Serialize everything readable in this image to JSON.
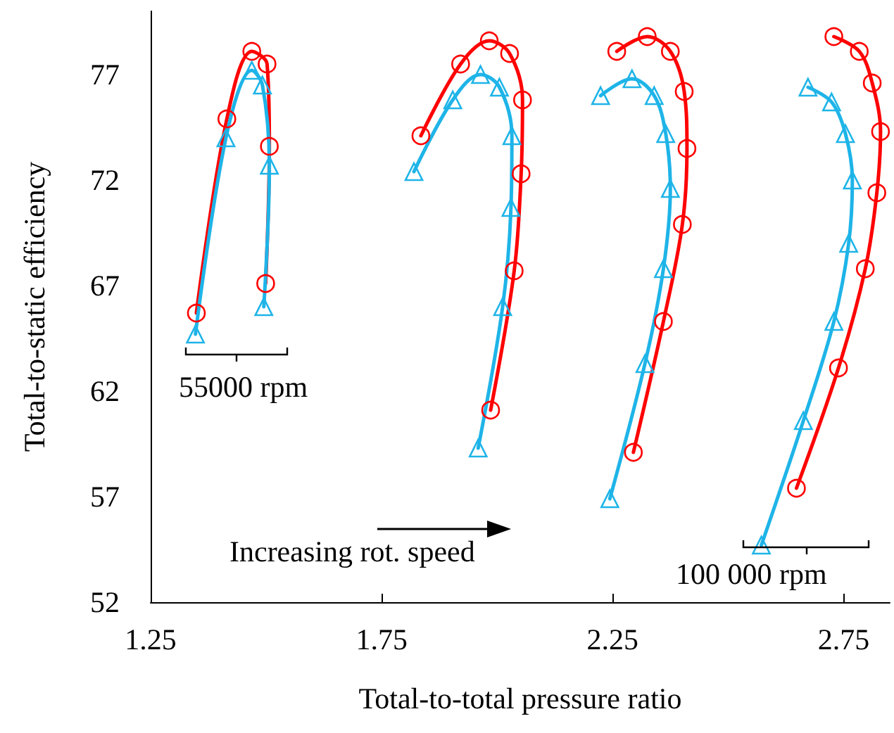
{
  "chart_data": {
    "type": "line",
    "xlabel": "Total-to-total pressure ratio",
    "ylabel": "Total-to-static efficiency",
    "xlim": [
      1.25,
      2.85
    ],
    "ylim": [
      52,
      80
    ],
    "xticks": [
      1.25,
      1.75,
      2.25,
      2.75
    ],
    "yticks": [
      52,
      57,
      62,
      67,
      72,
      77
    ],
    "grid": false,
    "annotations": [
      "55000 rpm",
      "Increasing rot. speed",
      "100 000 rpm"
    ],
    "series": [
      {
        "color": "#ff0000",
        "marker": "circle",
        "x": [
          1.349,
          1.415,
          1.469,
          1.502,
          1.507,
          1.499
        ],
        "values": [
          65.7,
          74.9,
          78.1,
          77.5,
          73.6,
          67.1
        ]
      },
      {
        "color": "#1eb4e8",
        "marker": "triangle",
        "x": [
          1.347,
          1.413,
          1.469,
          1.492,
          1.507,
          1.495
        ],
        "values": [
          64.7,
          74.0,
          77.2,
          76.5,
          72.7,
          66.0
        ]
      },
      {
        "color": "#ff0000",
        "marker": "circle",
        "x": [
          1.835,
          1.921,
          1.983,
          2.027,
          2.055,
          2.052,
          2.037,
          1.986
        ],
        "values": [
          74.1,
          77.5,
          78.6,
          78.0,
          75.8,
          72.3,
          67.7,
          61.1
        ]
      },
      {
        "color": "#1eb4e8",
        "marker": "triangle",
        "x": [
          1.82,
          1.904,
          1.964,
          2.005,
          2.032,
          2.03,
          2.012,
          1.959
        ],
        "values": [
          72.4,
          75.8,
          77.0,
          76.4,
          74.1,
          70.7,
          66.0,
          59.3
        ]
      },
      {
        "color": "#ff0000",
        "marker": "circle",
        "x": [
          2.259,
          2.325,
          2.375,
          2.405,
          2.411,
          2.401,
          2.36,
          2.295
        ],
        "values": [
          78.1,
          78.8,
          78.1,
          76.2,
          73.5,
          69.9,
          65.3,
          59.1
        ]
      },
      {
        "color": "#1eb4e8",
        "marker": "triangle",
        "x": [
          2.224,
          2.292,
          2.34,
          2.365,
          2.375,
          2.36,
          2.32,
          2.244
        ],
        "values": [
          76.0,
          76.8,
          76.0,
          74.2,
          71.6,
          67.8,
          63.3,
          56.9
        ]
      },
      {
        "color": "#ff0000",
        "marker": "circle",
        "x": [
          2.729,
          2.784,
          2.812,
          2.83,
          2.822,
          2.797,
          2.739,
          2.648
        ],
        "values": [
          78.8,
          78.1,
          76.6,
          74.3,
          71.4,
          67.8,
          63.1,
          57.4
        ]
      },
      {
        "color": "#1eb4e8",
        "marker": "triangle",
        "x": [
          2.673,
          2.724,
          2.754,
          2.769,
          2.761,
          2.729,
          2.663,
          2.572
        ],
        "values": [
          76.4,
          75.7,
          74.2,
          72.0,
          69.0,
          65.3,
          60.6,
          54.7
        ]
      }
    ]
  }
}
